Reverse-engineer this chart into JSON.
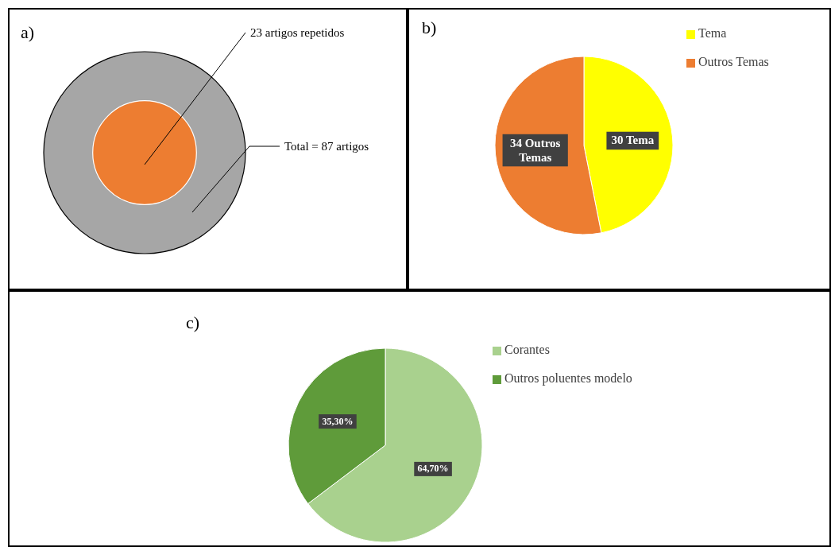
{
  "chart_data": [
    {
      "type": "other",
      "title": "a)",
      "values": [
        23,
        87
      ],
      "colors": [
        "#ed7d31",
        "#a6a6a6"
      ],
      "value_labels": [
        "23 artigos repetidos",
        "Total = 87 artigos"
      ]
    },
    {
      "type": "pie",
      "title": "b)",
      "categories": [
        "Tema",
        "Outros Temas"
      ],
      "values": [
        30,
        34
      ],
      "colors": [
        "#ffff00",
        "#ed7d31"
      ],
      "value_labels": [
        "30 Tema",
        "34 Outros Temas"
      ],
      "legend": "top right"
    },
    {
      "type": "pie",
      "title": "c)",
      "categories": [
        "Corantes",
        "Outros poluentes modelo"
      ],
      "values": [
        64.7,
        35.3
      ],
      "colors": [
        "#a9d18e",
        "#5f9b3a"
      ],
      "value_labels": [
        "64,70%",
        "35,30%"
      ],
      "legend": "right"
    }
  ]
}
